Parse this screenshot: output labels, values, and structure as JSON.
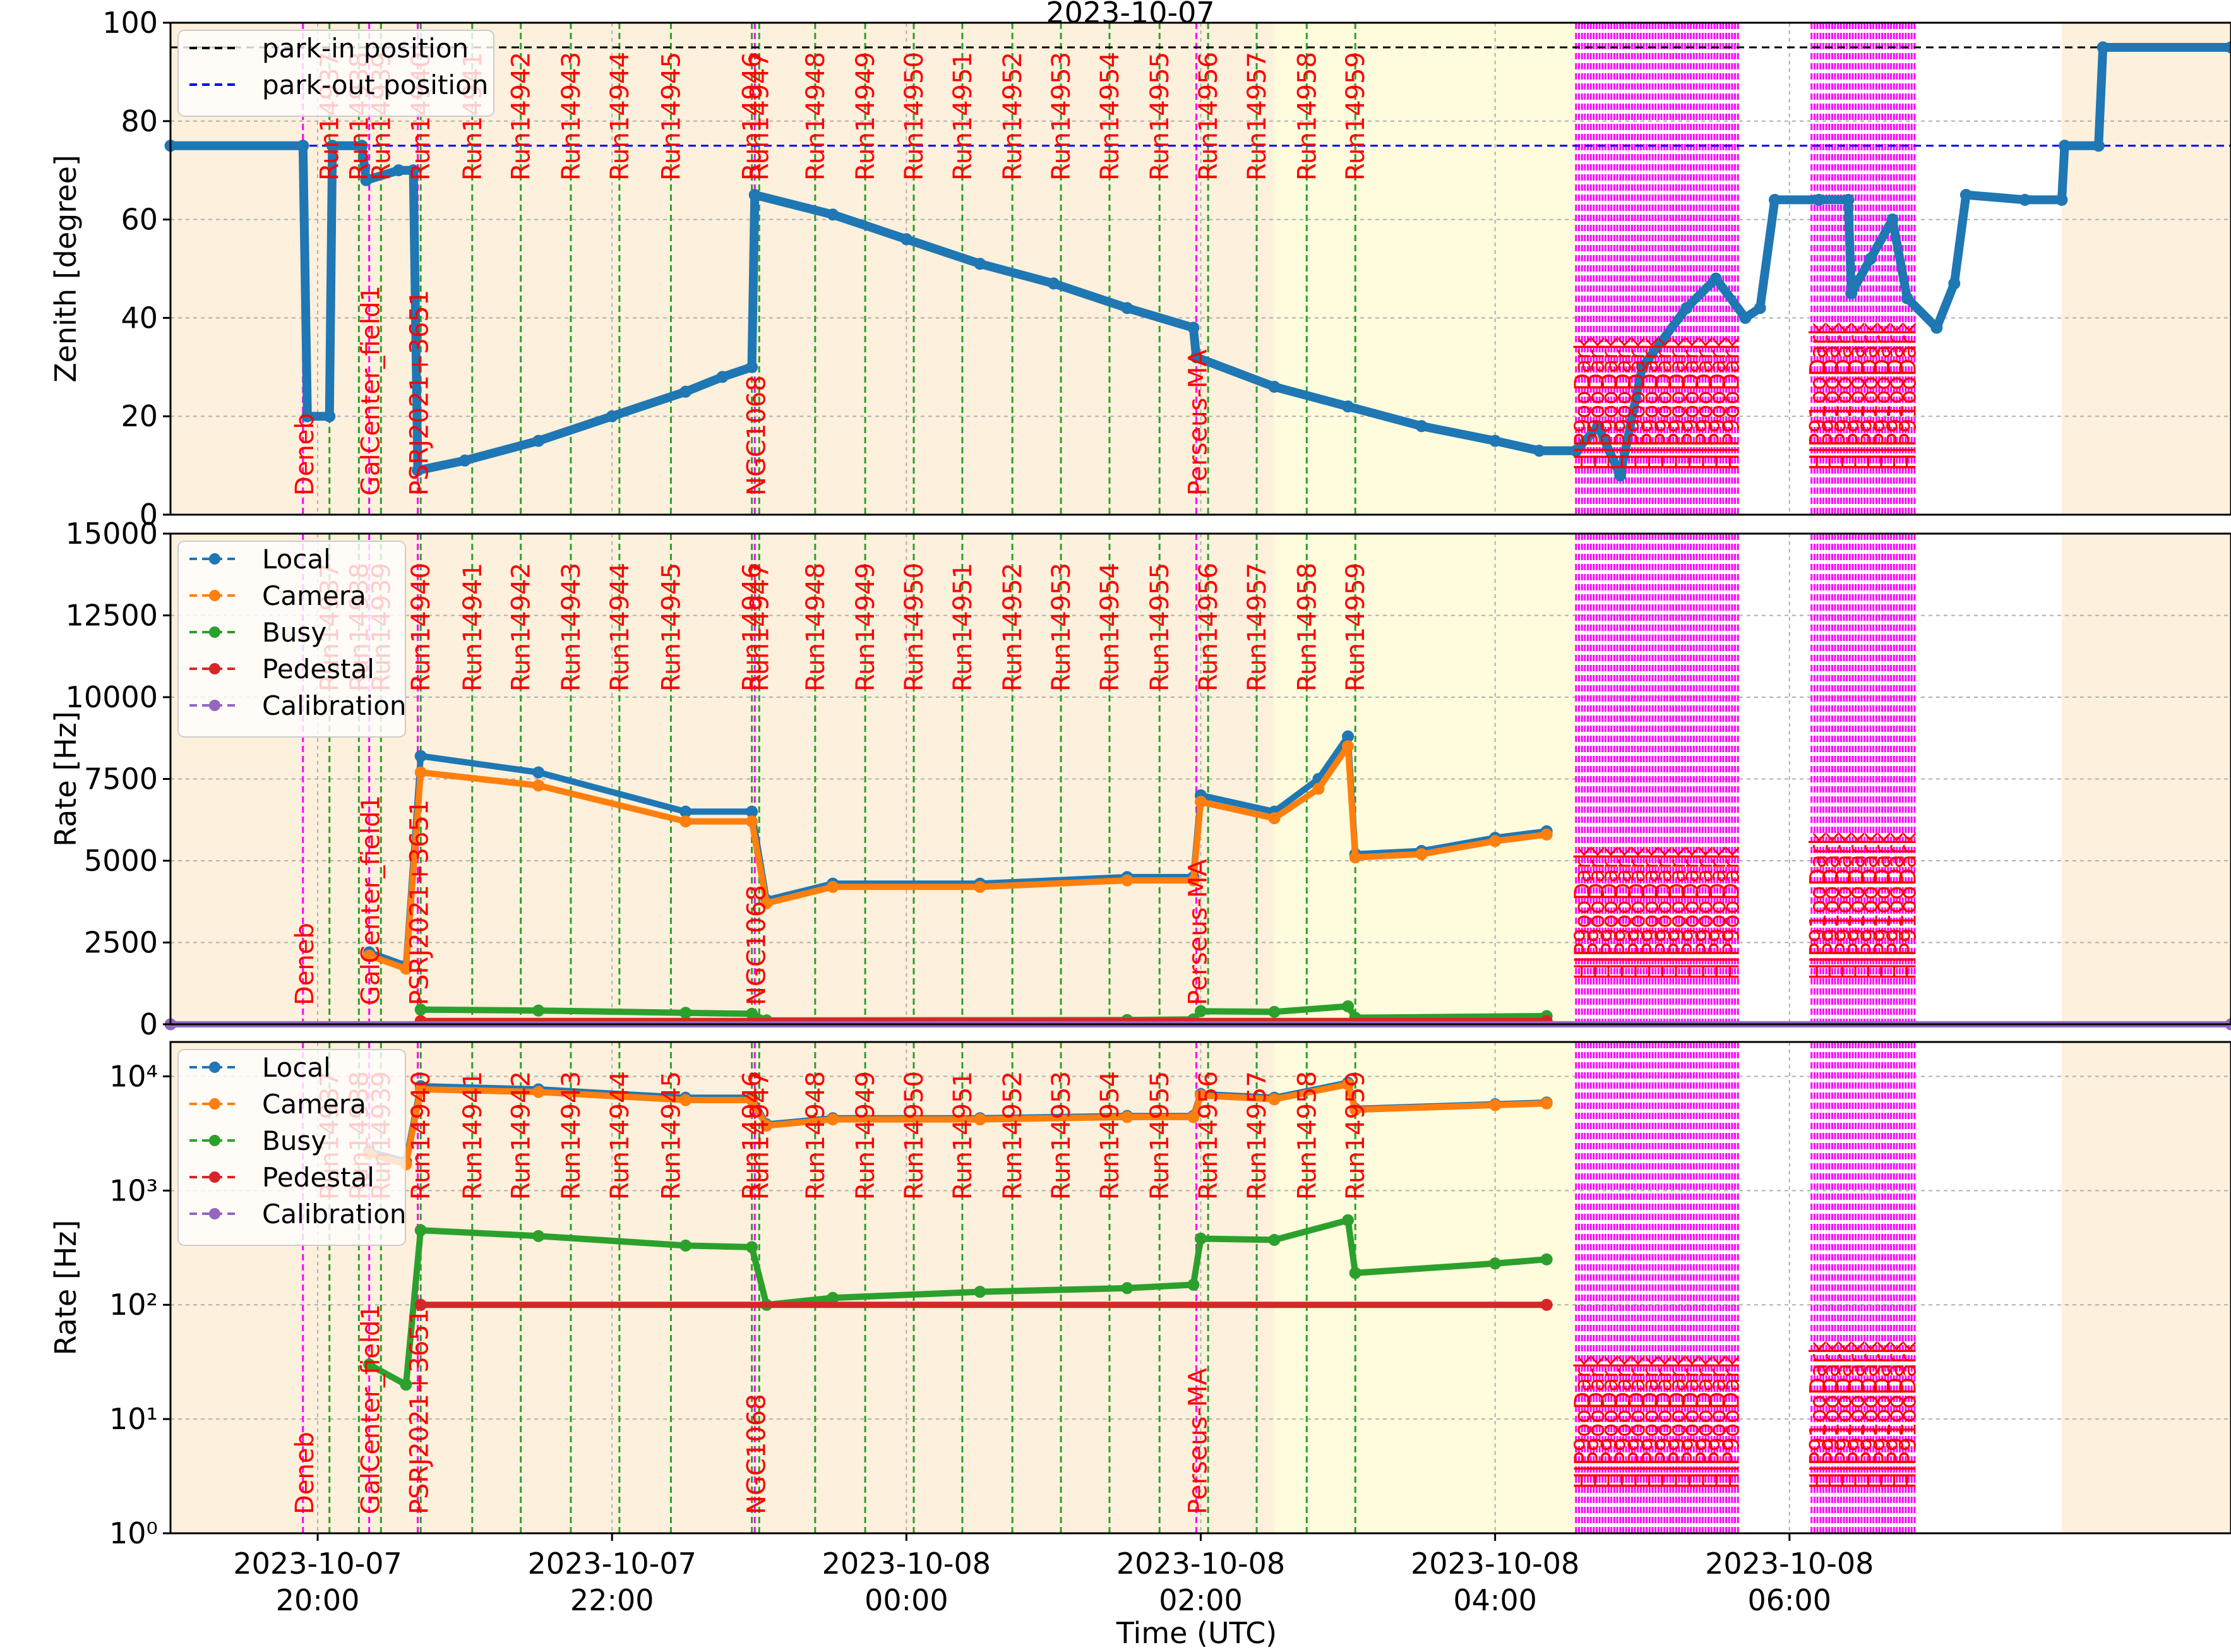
{
  "chart_data": [
    {
      "type": "line",
      "panel": "zenith",
      "title": "2023-10-07",
      "xlabel": "",
      "ylabel": "Zenith [degree]",
      "ylim": [
        0,
        100
      ],
      "yticks": [
        "0",
        "20",
        "40",
        "60",
        "80",
        "100"
      ],
      "grid": true,
      "legend_position": "top-left",
      "legend": [
        "park-in position",
        "park-out position"
      ],
      "hlines": [
        {
          "name": "park-in position",
          "y": 95,
          "color": "#000000",
          "style": "dashed"
        },
        {
          "name": "park-out position",
          "y": 75,
          "color": "#0000ff",
          "style": "dashed"
        }
      ],
      "series": [
        {
          "name": "Zenith",
          "color": "#1f77b4",
          "points": [
            [
              19.0,
              75
            ],
            [
              19.9,
              75
            ],
            [
              19.93,
              20
            ],
            [
              20.08,
              20
            ],
            [
              20.1,
              75
            ],
            [
              20.3,
              75
            ],
            [
              20.33,
              68
            ],
            [
              20.55,
              70
            ],
            [
              20.65,
              70
            ],
            [
              20.68,
              9
            ],
            [
              21.0,
              11
            ],
            [
              21.5,
              15
            ],
            [
              22.0,
              20
            ],
            [
              22.5,
              25
            ],
            [
              22.75,
              28
            ],
            [
              22.95,
              30
            ],
            [
              22.97,
              65
            ],
            [
              23.5,
              61
            ],
            [
              24.0,
              56
            ],
            [
              24.5,
              51
            ],
            [
              25.0,
              47
            ],
            [
              25.5,
              42
            ],
            [
              25.95,
              38
            ],
            [
              25.97,
              32
            ],
            [
              26.5,
              26
            ],
            [
              27.0,
              22
            ],
            [
              27.5,
              18
            ],
            [
              28.0,
              15
            ],
            [
              28.3,
              13
            ],
            [
              28.55,
              13
            ],
            [
              28.7,
              18
            ],
            [
              28.85,
              8
            ],
            [
              29.0,
              30
            ],
            [
              29.3,
              42
            ],
            [
              29.5,
              48
            ],
            [
              29.7,
              40
            ],
            [
              29.8,
              42
            ],
            [
              29.9,
              64
            ],
            [
              30.2,
              64
            ],
            [
              30.4,
              64
            ],
            [
              30.42,
              45
            ],
            [
              30.55,
              52
            ],
            [
              30.7,
              60
            ],
            [
              30.8,
              44
            ],
            [
              31.0,
              38
            ],
            [
              31.12,
              47
            ],
            [
              31.2,
              65
            ],
            [
              31.6,
              64
            ],
            [
              31.85,
              64
            ],
            [
              31.87,
              75
            ],
            [
              32.1,
              75
            ],
            [
              32.13,
              95
            ],
            [
              33.0,
              95
            ]
          ]
        }
      ]
    },
    {
      "type": "line",
      "panel": "rate-linear",
      "xlabel": "",
      "ylabel": "Rate [Hz]",
      "ylim": [
        0,
        15000
      ],
      "yticks": [
        "0",
        "2500",
        "5000",
        "7500",
        "10000",
        "12500",
        "15000"
      ],
      "grid": true,
      "legend_position": "top-left",
      "legend": [
        "Local",
        "Camera",
        "Busy",
        "Pedestal",
        "Calibration"
      ],
      "series": [
        {
          "name": "Local",
          "color": "#1f77b4",
          "points": [
            [
              20.35,
              2200
            ],
            [
              20.6,
              1800
            ],
            [
              20.7,
              8200
            ],
            [
              21.5,
              7700
            ],
            [
              22.5,
              6500
            ],
            [
              22.95,
              6500
            ],
            [
              23.05,
              3800
            ],
            [
              23.5,
              4300
            ],
            [
              24.5,
              4300
            ],
            [
              25.5,
              4500
            ],
            [
              25.95,
              4500
            ],
            [
              26.0,
              7000
            ],
            [
              26.5,
              6500
            ],
            [
              26.8,
              7500
            ],
            [
              27.0,
              8800
            ],
            [
              27.05,
              5200
            ],
            [
              27.5,
              5300
            ],
            [
              28.0,
              5700
            ],
            [
              28.35,
              5900
            ]
          ]
        },
        {
          "name": "Camera",
          "color": "#ff7f0e",
          "points": [
            [
              20.35,
              2100
            ],
            [
              20.6,
              1700
            ],
            [
              20.7,
              7700
            ],
            [
              21.5,
              7300
            ],
            [
              22.5,
              6200
            ],
            [
              22.95,
              6200
            ],
            [
              23.05,
              3700
            ],
            [
              23.5,
              4200
            ],
            [
              24.5,
              4200
            ],
            [
              25.5,
              4400
            ],
            [
              25.95,
              4400
            ],
            [
              26.0,
              6800
            ],
            [
              26.5,
              6300
            ],
            [
              26.8,
              7200
            ],
            [
              27.0,
              8500
            ],
            [
              27.05,
              5100
            ],
            [
              27.5,
              5200
            ],
            [
              28.0,
              5600
            ],
            [
              28.35,
              5800
            ]
          ]
        },
        {
          "name": "Busy",
          "color": "#2ca02c",
          "points": [
            [
              20.7,
              450
            ],
            [
              21.5,
              420
            ],
            [
              22.5,
              350
            ],
            [
              22.95,
              320
            ],
            [
              23.05,
              120
            ],
            [
              25.5,
              130
            ],
            [
              25.95,
              150
            ],
            [
              26.0,
              400
            ],
            [
              26.5,
              380
            ],
            [
              27.0,
              550
            ],
            [
              27.05,
              200
            ],
            [
              28.35,
              250
            ]
          ]
        },
        {
          "name": "Pedestal",
          "color": "#d62728",
          "points": [
            [
              20.7,
              100
            ],
            [
              28.35,
              100
            ]
          ]
        },
        {
          "name": "Calibration",
          "color": "#9467bd",
          "points": [
            [
              19.0,
              0
            ],
            [
              33.0,
              0
            ]
          ]
        }
      ]
    },
    {
      "type": "line",
      "panel": "rate-log",
      "xlabel": "Time (UTC)",
      "ylabel": "Rate [Hz]",
      "yscale": "log",
      "ylim": [
        1,
        20000
      ],
      "yticks": [
        "10⁰",
        "10¹",
        "10²",
        "10³",
        "10⁴"
      ],
      "grid": true,
      "legend_position": "top-left",
      "legend": [
        "Local",
        "Camera",
        "Busy",
        "Pedestal",
        "Calibration"
      ],
      "series": [
        {
          "name": "Local",
          "color": "#1f77b4",
          "points": [
            [
              20.35,
              2200
            ],
            [
              20.6,
              1800
            ],
            [
              20.7,
              8200
            ],
            [
              21.5,
              7700
            ],
            [
              22.5,
              6500
            ],
            [
              22.95,
              6500
            ],
            [
              23.05,
              3800
            ],
            [
              23.5,
              4300
            ],
            [
              24.5,
              4300
            ],
            [
              25.5,
              4500
            ],
            [
              25.95,
              4500
            ],
            [
              26.0,
              7000
            ],
            [
              26.5,
              6500
            ],
            [
              27.0,
              8800
            ],
            [
              27.05,
              5200
            ],
            [
              28.0,
              5700
            ],
            [
              28.35,
              5900
            ]
          ]
        },
        {
          "name": "Camera",
          "color": "#ff7f0e",
          "points": [
            [
              20.35,
              2100
            ],
            [
              20.6,
              1700
            ],
            [
              20.7,
              7700
            ],
            [
              21.5,
              7300
            ],
            [
              22.5,
              6200
            ],
            [
              22.95,
              6200
            ],
            [
              23.05,
              3700
            ],
            [
              23.5,
              4200
            ],
            [
              24.5,
              4200
            ],
            [
              25.5,
              4400
            ],
            [
              25.95,
              4400
            ],
            [
              26.0,
              6800
            ],
            [
              26.5,
              6300
            ],
            [
              27.0,
              8500
            ],
            [
              27.05,
              5100
            ],
            [
              28.0,
              5600
            ],
            [
              28.35,
              5800
            ]
          ]
        },
        {
          "name": "Busy",
          "color": "#2ca02c",
          "points": [
            [
              20.35,
              30
            ],
            [
              20.6,
              20
            ],
            [
              20.7,
              450
            ],
            [
              21.5,
              400
            ],
            [
              22.5,
              330
            ],
            [
              22.95,
              320
            ],
            [
              23.05,
              100
            ],
            [
              23.5,
              115
            ],
            [
              24.5,
              130
            ],
            [
              25.5,
              140
            ],
            [
              25.95,
              150
            ],
            [
              26.0,
              380
            ],
            [
              26.5,
              370
            ],
            [
              27.0,
              550
            ],
            [
              27.05,
              190
            ],
            [
              28.0,
              230
            ],
            [
              28.35,
              250
            ]
          ]
        },
        {
          "name": "Pedestal",
          "color": "#d62728",
          "points": [
            [
              20.7,
              100
            ],
            [
              28.35,
              100
            ]
          ]
        },
        {
          "name": "Calibration",
          "color": "#9467bd",
          "points": []
        }
      ]
    }
  ],
  "x_axis": {
    "xlim": [
      19.0,
      33.0
    ],
    "ticks": [
      {
        "x": 20,
        "line1": "2023-10-07",
        "line2": "20:00"
      },
      {
        "x": 22,
        "line1": "2023-10-07",
        "line2": "22:00"
      },
      {
        "x": 24,
        "line1": "2023-10-08",
        "line2": "00:00"
      },
      {
        "x": 26,
        "line1": "2023-10-08",
        "line2": "02:00"
      },
      {
        "x": 28,
        "line1": "2023-10-08",
        "line2": "04:00"
      },
      {
        "x": 30,
        "line1": "2023-10-08",
        "line2": "06:00"
      }
    ]
  },
  "shading": [
    {
      "from": 19.0,
      "to": 26.5,
      "color": "#fdf0dc"
    },
    {
      "from": 26.5,
      "to": 28.55,
      "color": "#fffbdd"
    },
    {
      "from": 31.85,
      "to": 33.0,
      "color": "#fdf0dc"
    }
  ],
  "runs": [
    {
      "label": "Run14937",
      "x": 20.08
    },
    {
      "label": "Run14938",
      "x": 20.28
    },
    {
      "label": "Run14939",
      "x": 20.43
    },
    {
      "label": "Run14940",
      "x": 20.7
    },
    {
      "label": "Run14941",
      "x": 21.05
    },
    {
      "label": "Run14942",
      "x": 21.38
    },
    {
      "label": "Run14943",
      "x": 21.72
    },
    {
      "label": "Run14944",
      "x": 22.05
    },
    {
      "label": "Run14945",
      "x": 22.4
    },
    {
      "label": "Run14946",
      "x": 22.95
    },
    {
      "label": "Run14947",
      "x": 23.0
    },
    {
      "label": "Run14948",
      "x": 23.38
    },
    {
      "label": "Run14949",
      "x": 23.72
    },
    {
      "label": "Run14950",
      "x": 24.05
    },
    {
      "label": "Run14951",
      "x": 24.38
    },
    {
      "label": "Run14952",
      "x": 24.72
    },
    {
      "label": "Run14953",
      "x": 25.05
    },
    {
      "label": "Run14954",
      "x": 25.38
    },
    {
      "label": "Run14955",
      "x": 25.72
    },
    {
      "label": "Run14956",
      "x": 26.05
    },
    {
      "label": "Run14957",
      "x": 26.38
    },
    {
      "label": "Run14958",
      "x": 26.72
    },
    {
      "label": "Run14959",
      "x": 27.05
    }
  ],
  "sources": [
    {
      "label": "Deneb",
      "x": 19.9
    },
    {
      "label": "GalCenter_field1",
      "x": 20.35
    },
    {
      "label": "PSRJ2021+3651",
      "x": 20.68
    },
    {
      "label": "NGC1068",
      "x": 22.97
    },
    {
      "label": "Perseus-MA",
      "x": 25.97
    }
  ],
  "dark_blocks": [
    {
      "from": 28.55,
      "to": 29.65,
      "labels": [
        "HIP9ooDark",
        "HIP9ooDark",
        "HIP9ooDark",
        "HIP9ooDark",
        "HIP9ooDark",
        "HIP9ooDark",
        "HIP9ooDark",
        "HIP9ooDark",
        "HIP9ooDark",
        "HIP9ooDark",
        "HIP9ooDark",
        "HIP9ooDark"
      ]
    },
    {
      "from": 30.15,
      "to": 30.85,
      "labels": [
        "HIP91ooDark",
        "HIP91ooDark",
        "HIP91ooDark",
        "HIP91ooDark",
        "HIP91ooDark",
        "HIP91ooDark",
        "HIP91ooDark",
        "HIP91ooDark"
      ]
    }
  ]
}
